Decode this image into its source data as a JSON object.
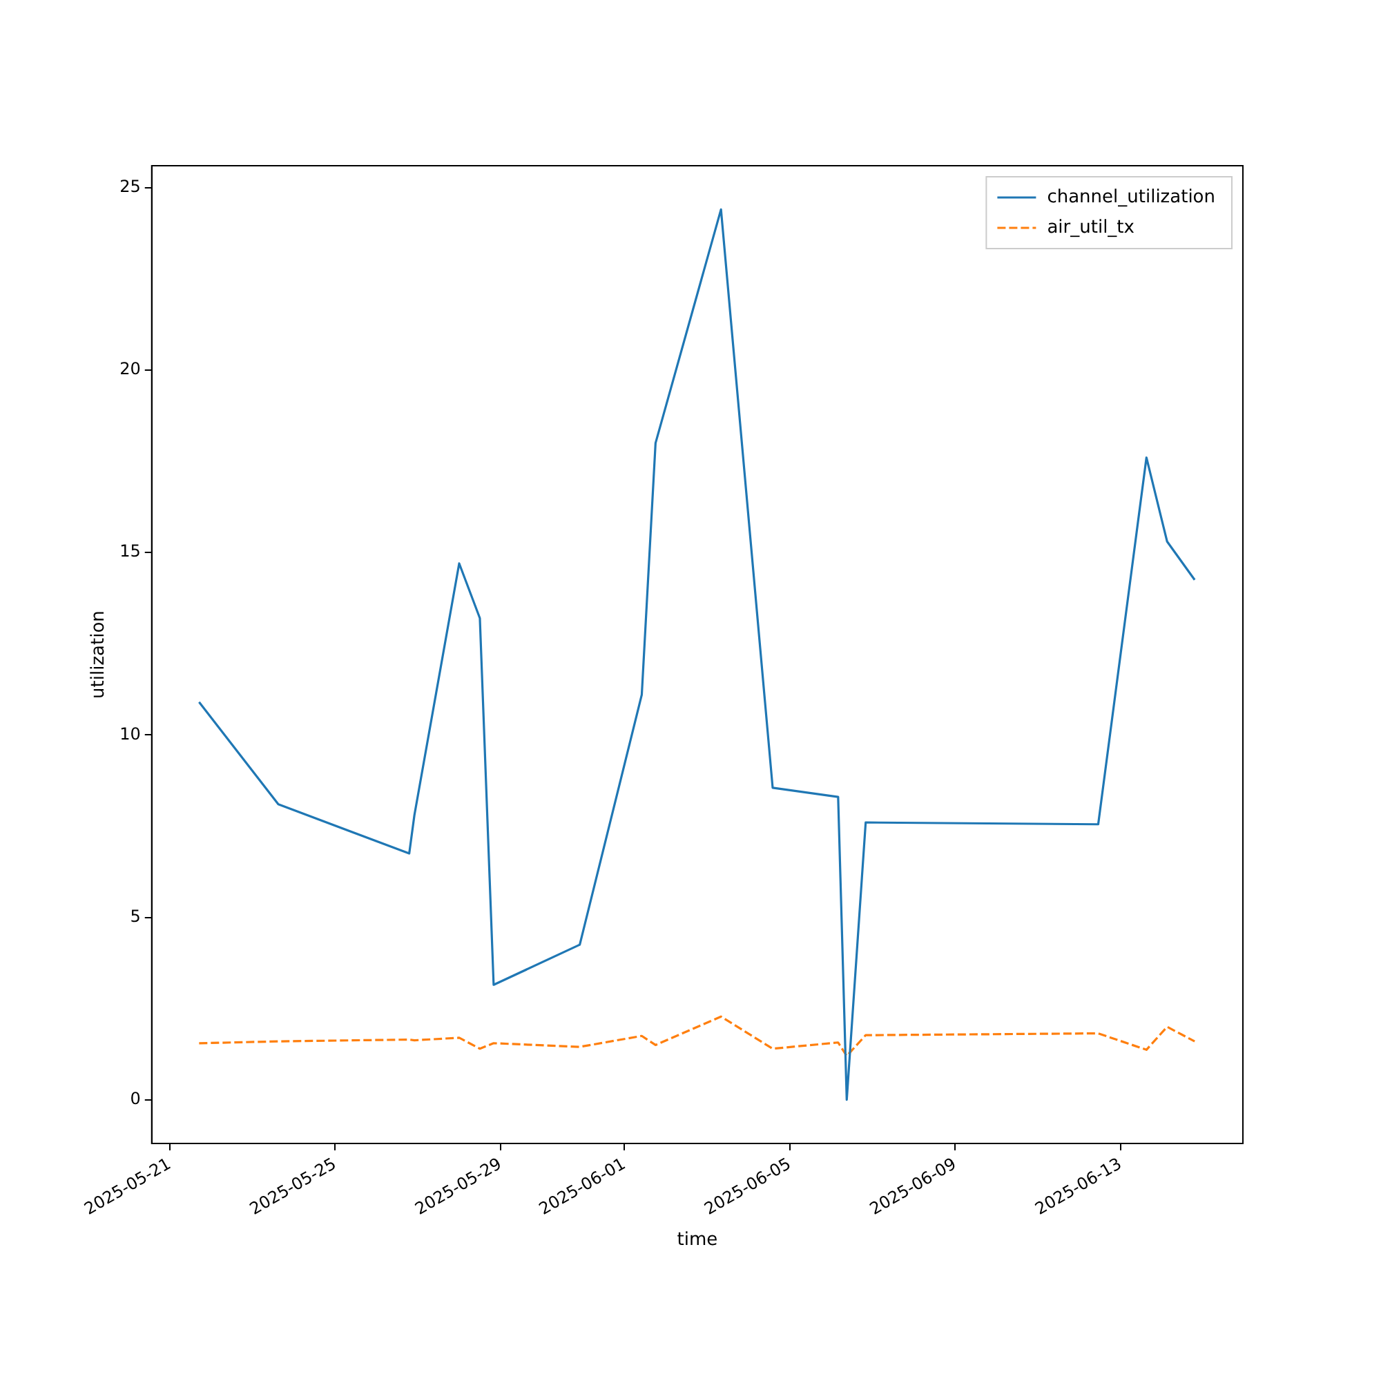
{
  "chart_data": {
    "type": "line",
    "xlabel": "time",
    "ylabel": "utilization",
    "x": [
      "2025-05-21T17:00",
      "2025-05-23T15:00",
      "2025-05-26T19:00",
      "2025-05-26T22:00",
      "2025-05-28T00:00",
      "2025-05-28T12:00",
      "2025-05-28T20:00",
      "2025-05-30T22:00",
      "2025-06-01T10:00",
      "2025-06-01T18:00",
      "2025-06-03T08:00",
      "2025-06-04T14:00",
      "2025-06-06T04:00",
      "2025-06-06T09:00",
      "2025-06-06T20:00",
      "2025-06-12T11:00",
      "2025-06-13T15:00",
      "2025-06-14T03:00",
      "2025-06-14T19:00"
    ],
    "series": [
      {
        "name": "channel_utilization",
        "color": "#1f77b4",
        "line_style": "solid",
        "values": [
          10.9,
          8.1,
          6.75,
          7.8,
          14.7,
          13.2,
          3.15,
          4.25,
          11.1,
          18.0,
          24.4,
          8.55,
          8.3,
          0.0,
          7.6,
          7.55,
          17.6,
          15.3,
          14.25
        ]
      },
      {
        "name": "air_util_tx",
        "color": "#ff7f0e",
        "line_style": "dashed",
        "values": [
          1.55,
          1.6,
          1.65,
          1.63,
          1.7,
          1.4,
          1.55,
          1.45,
          1.75,
          1.5,
          2.28,
          1.4,
          1.57,
          1.2,
          1.77,
          1.82,
          1.37,
          2.0,
          1.6
        ]
      }
    ],
    "xlim": [
      "2025-05-20T13:30",
      "2025-06-15T23:00"
    ],
    "xticks": [
      "2025-05-21",
      "2025-05-25",
      "2025-05-29",
      "2025-06-01",
      "2025-06-05",
      "2025-06-09",
      "2025-06-13"
    ],
    "ylim": [
      -1.2,
      25.6
    ],
    "yticks": [
      0,
      5,
      10,
      15,
      20,
      25
    ],
    "legend": "top right",
    "grid": false,
    "marker": "none"
  }
}
